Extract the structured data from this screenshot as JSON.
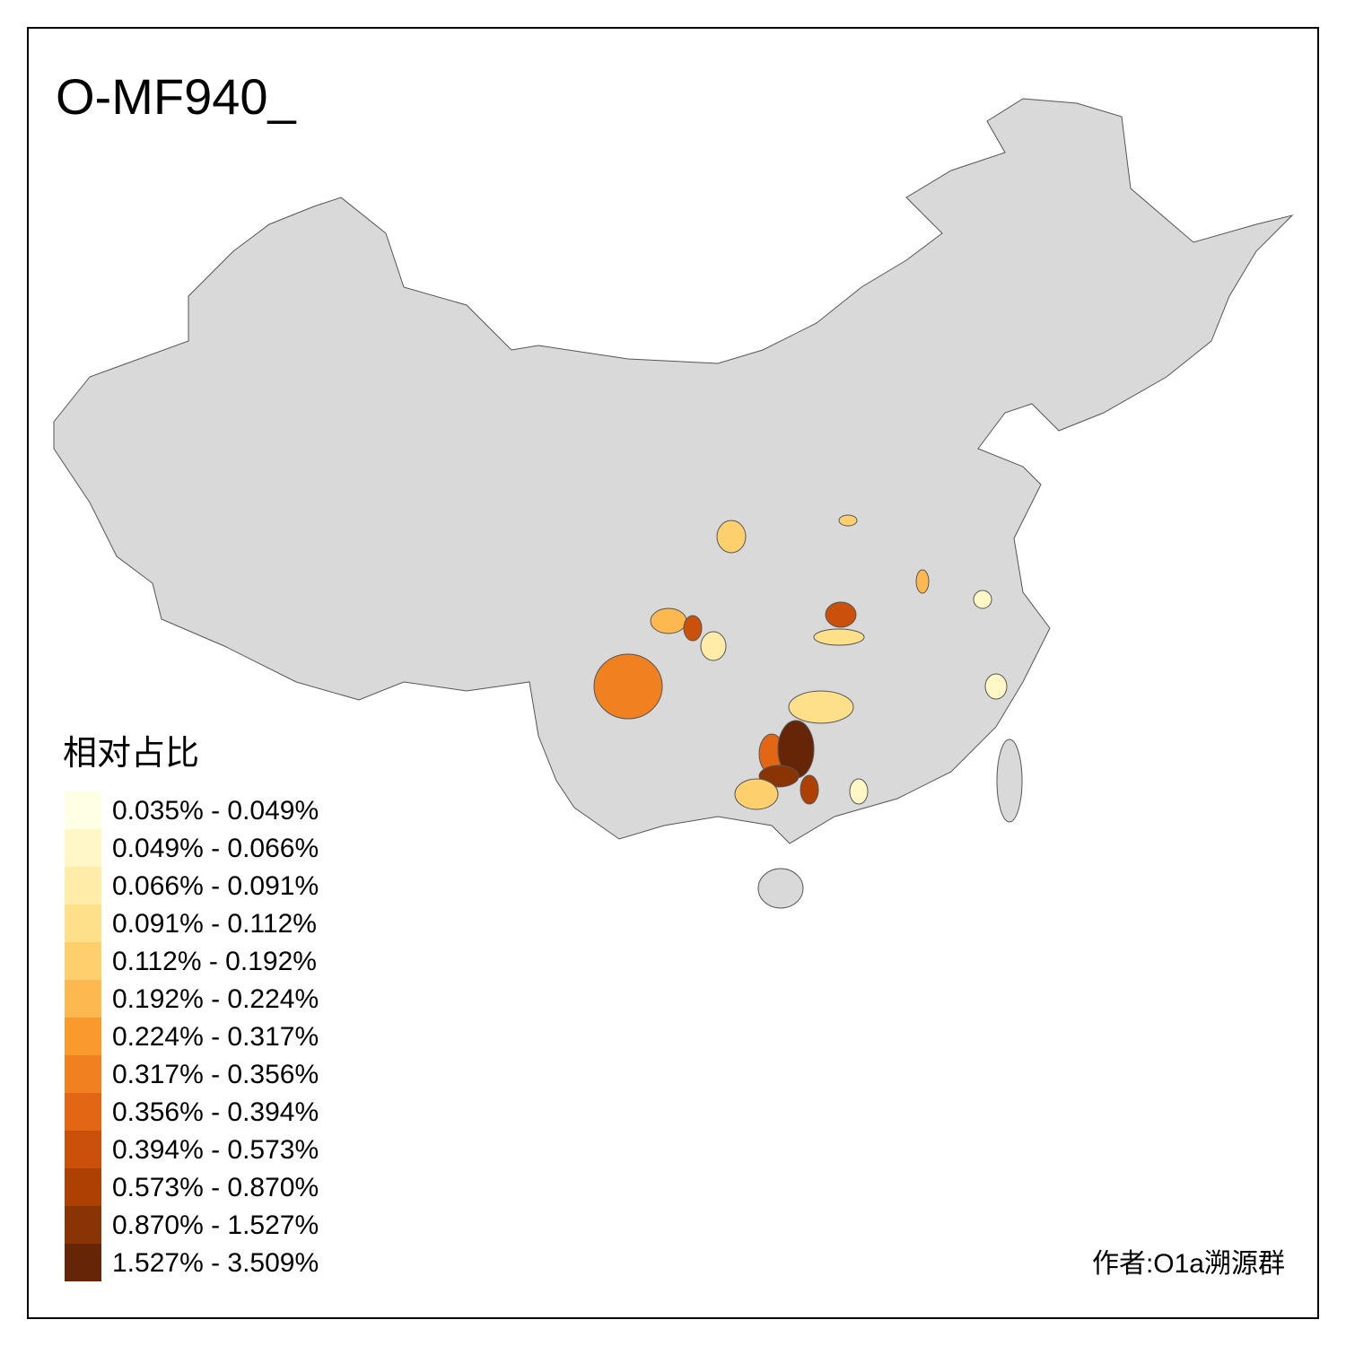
{
  "title": "O-MF940_",
  "legend": {
    "title": "相对占比",
    "items": [
      {
        "label": "0.035% - 0.049%",
        "color": "#ffffe5"
      },
      {
        "label": "0.049% - 0.066%",
        "color": "#fff7c6"
      },
      {
        "label": "0.066% - 0.091%",
        "color": "#feeca8"
      },
      {
        "label": "0.091% - 0.112%",
        "color": "#fee08b"
      },
      {
        "label": "0.112% - 0.192%",
        "color": "#fed06d"
      },
      {
        "label": "0.192% - 0.224%",
        "color": "#fdb84f"
      },
      {
        "label": "0.224% - 0.317%",
        "color": "#fb9a2c"
      },
      {
        "label": "0.317% - 0.356%",
        "color": "#f08020"
      },
      {
        "label": "0.356% - 0.394%",
        "color": "#e26614"
      },
      {
        "label": "0.394% - 0.573%",
        "color": "#cb510a"
      },
      {
        "label": "0.573% - 0.870%",
        "color": "#ae4003"
      },
      {
        "label": "0.870% - 1.527%",
        "color": "#8a3304"
      },
      {
        "label": "1.527% - 3.509%",
        "color": "#662506"
      }
    ]
  },
  "credit": "作者:O1a溯源群"
}
